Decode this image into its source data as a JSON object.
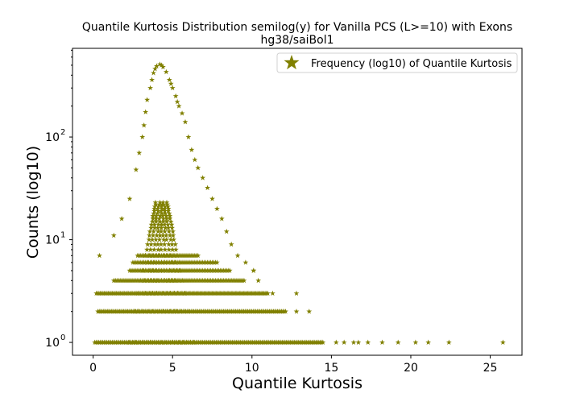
{
  "chart_data": {
    "type": "scatter",
    "title": "Quantile Kurtosis Distribution semilog(y) for Vanilla PCS (L>=10) with Exons",
    "subtitle": "hg38/saiBol1",
    "xlabel": "Quantile Kurtosis",
    "ylabel": "Counts (log10)",
    "y_scale": "log",
    "xlim": [
      -1.3,
      27.0
    ],
    "ylim": [
      0.75,
      730
    ],
    "x_ticks": [
      0,
      5,
      10,
      15,
      20,
      25
    ],
    "x_tick_labels": [
      "0",
      "5",
      "10",
      "15",
      "20",
      "25"
    ],
    "y_ticks": [
      1,
      10,
      100
    ],
    "y_tick_labels": [
      "10",
      "10",
      "10"
    ],
    "y_tick_exponents": [
      "0",
      "1",
      "2"
    ],
    "grid": false,
    "legend_position": "upper right",
    "marker": "star",
    "color": "#808000",
    "series": [
      {
        "name": "Frequency (log10) of Quantile Kurtosis",
        "peak_curve": [
          {
            "x": 0.4,
            "y": 7
          },
          {
            "x": 1.3,
            "y": 11
          },
          {
            "x": 1.8,
            "y": 16
          },
          {
            "x": 2.3,
            "y": 25
          },
          {
            "x": 2.7,
            "y": 48
          },
          {
            "x": 2.9,
            "y": 70
          },
          {
            "x": 3.1,
            "y": 100
          },
          {
            "x": 3.2,
            "y": 130
          },
          {
            "x": 3.3,
            "y": 175
          },
          {
            "x": 3.4,
            "y": 230
          },
          {
            "x": 3.6,
            "y": 300
          },
          {
            "x": 3.7,
            "y": 360
          },
          {
            "x": 3.8,
            "y": 420
          },
          {
            "x": 3.9,
            "y": 460
          },
          {
            "x": 4.0,
            "y": 490
          },
          {
            "x": 4.2,
            "y": 510
          },
          {
            "x": 4.3,
            "y": 500
          },
          {
            "x": 4.4,
            "y": 480
          },
          {
            "x": 4.6,
            "y": 430
          },
          {
            "x": 4.8,
            "y": 360
          },
          {
            "x": 4.9,
            "y": 330
          },
          {
            "x": 5.0,
            "y": 300
          },
          {
            "x": 5.2,
            "y": 250
          },
          {
            "x": 5.3,
            "y": 220
          },
          {
            "x": 5.4,
            "y": 200
          },
          {
            "x": 5.6,
            "y": 170
          },
          {
            "x": 5.8,
            "y": 140
          },
          {
            "x": 6.0,
            "y": 100
          },
          {
            "x": 6.2,
            "y": 75
          },
          {
            "x": 6.4,
            "y": 60
          },
          {
            "x": 6.6,
            "y": 50
          },
          {
            "x": 6.9,
            "y": 40
          },
          {
            "x": 7.2,
            "y": 32
          },
          {
            "x": 7.5,
            "y": 25
          },
          {
            "x": 7.8,
            "y": 20
          },
          {
            "x": 8.1,
            "y": 16
          },
          {
            "x": 8.4,
            "y": 12
          },
          {
            "x": 8.7,
            "y": 9
          },
          {
            "x": 9.1,
            "y": 7
          },
          {
            "x": 9.6,
            "y": 6
          },
          {
            "x": 10.1,
            "y": 5
          }
        ],
        "inner_band": {
          "y_min": 1,
          "y_max": 23,
          "x_center": 4.3
        },
        "bands": [
          {
            "y": 1,
            "x_min": 0.1,
            "x_max": 14.5
          },
          {
            "y": 2,
            "x_min": 0.3,
            "x_max": 12.2
          },
          {
            "y": 3,
            "x_min": 0.2,
            "x_max": 11.0
          },
          {
            "y": 4,
            "x_min": 1.3,
            "x_max": 9.5
          },
          {
            "y": 5,
            "x_min": 2.3,
            "x_max": 8.6
          },
          {
            "y": 6,
            "x_min": 2.5,
            "x_max": 7.8
          },
          {
            "y": 7,
            "x_min": 2.8,
            "x_max": 6.6
          }
        ],
        "outliers": [
          {
            "x": 15.3,
            "y": 1
          },
          {
            "x": 15.8,
            "y": 1
          },
          {
            "x": 16.4,
            "y": 1
          },
          {
            "x": 16.7,
            "y": 1
          },
          {
            "x": 17.3,
            "y": 1
          },
          {
            "x": 18.2,
            "y": 1
          },
          {
            "x": 19.2,
            "y": 1
          },
          {
            "x": 20.3,
            "y": 1
          },
          {
            "x": 21.1,
            "y": 1
          },
          {
            "x": 22.4,
            "y": 1
          },
          {
            "x": 25.8,
            "y": 1
          },
          {
            "x": 12.8,
            "y": 2
          },
          {
            "x": 13.6,
            "y": 2
          },
          {
            "x": 11.3,
            "y": 3
          },
          {
            "x": 12.8,
            "y": 3
          },
          {
            "x": 10.4,
            "y": 4
          },
          {
            "x": 10.1,
            "y": 5
          }
        ]
      }
    ]
  }
}
